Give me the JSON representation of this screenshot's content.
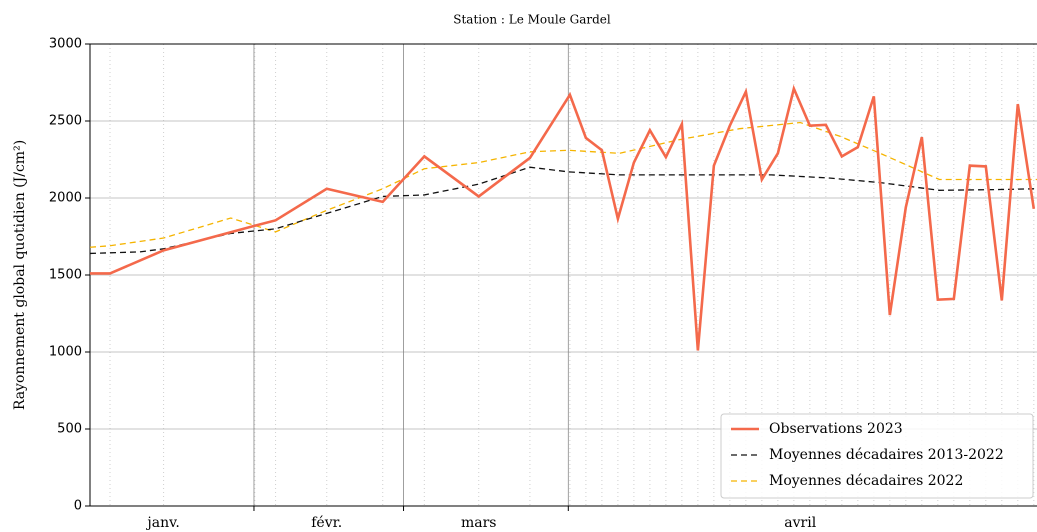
{
  "chart_data": {
    "type": "line",
    "title": "Station : Le Moule Gardel",
    "ylabel": "Rayonnement global quotidien (J/cm²)",
    "ylim": [
      0,
      3000
    ],
    "yticks": [
      0,
      500,
      1000,
      1500,
      2000,
      2500,
      3000
    ],
    "xlim": [
      0,
      59.2
    ],
    "xticks": [
      {
        "value": 4.6,
        "label": "janv."
      },
      {
        "value": 14.8,
        "label": "févr."
      },
      {
        "value": 24.3,
        "label": "mars"
      },
      {
        "value": 44.4,
        "label": "avril"
      }
    ],
    "xgrid": [
      10.25,
      19.6,
      29.9
    ],
    "grid": true,
    "legend": "lower right",
    "series": [
      {
        "name": "Observations 2023",
        "color": "#f4694b",
        "style": "solid",
        "x": [
          0,
          1.25,
          4.6,
          10.3,
          11.6,
          14.8,
          18.3,
          20.9,
          24.3,
          27.5,
          30,
          31,
          32,
          33,
          34,
          35,
          36,
          37,
          38,
          39,
          40,
          41,
          42,
          43,
          44,
          45,
          46,
          47,
          48,
          49,
          50,
          51,
          52,
          53,
          54,
          55,
          56,
          57,
          58,
          59
        ],
        "values": [
          1510,
          1510,
          1660,
          1820,
          1855,
          2060,
          1975,
          2270,
          2010,
          2260,
          2670,
          2390,
          2310,
          1865,
          2230,
          2440,
          2265,
          2480,
          1010,
          2210,
          2470,
          2690,
          2120,
          2290,
          2710,
          2470,
          2475,
          2270,
          2330,
          2660,
          1240,
          1940,
          2395,
          1340,
          1345,
          2210,
          2205,
          1335,
          2610,
          1930
        ]
      },
      {
        "name": "Moyennes décadaires 2013-2022",
        "color": "#111111",
        "style": "dashed",
        "x": [
          0,
          3.1,
          4.6,
          8.8,
          11.6,
          14.8,
          18.3,
          20.9,
          24.3,
          27.5,
          29.9,
          33.1,
          36.9,
          42.6,
          46.2,
          49.4,
          53.1,
          56.9,
          59.2
        ],
        "values": [
          1640,
          1650,
          1670,
          1770,
          1800,
          1900,
          2010,
          2020,
          2090,
          2200,
          2170,
          2150,
          2150,
          2150,
          2130,
          2100,
          2050,
          2055,
          2060
        ]
      },
      {
        "name": "Moyennes décadaires 2022",
        "color": "#f5b400",
        "style": "dashed",
        "x": [
          0,
          1.25,
          4.6,
          8.8,
          11.6,
          14.8,
          18.3,
          20.9,
          24.3,
          27.5,
          29.9,
          33.1,
          36.9,
          40.6,
          44.4,
          46.9,
          49.4,
          53.1,
          56.9,
          59.2
        ],
        "values": [
          1680,
          1690,
          1740,
          1870,
          1780,
          1920,
          2060,
          2190,
          2230,
          2300,
          2310,
          2290,
          2380,
          2450,
          2490,
          2400,
          2290,
          2120,
          2120,
          2120
        ]
      }
    ]
  }
}
